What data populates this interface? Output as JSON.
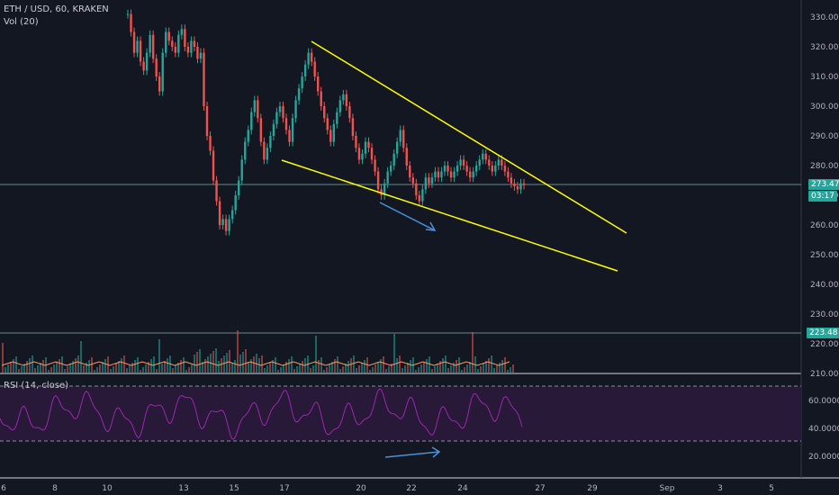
{
  "header": {
    "symbol": "ETH / USD, 60, KRAKEN",
    "volume_label": "Vol (20)",
    "rsi_label": "RSI (14, close)"
  },
  "colors": {
    "background": "#131722",
    "up": "#26a69a",
    "down": "#ef5350",
    "trendline": "#ffff00",
    "arrow": "#4a90d9",
    "rsi": "#9c27b0",
    "badge_price": "#26a69a",
    "badge_volume": "#26a69a"
  },
  "price_axis": {
    "ticks": [
      "330.00",
      "320.00",
      "310.00",
      "300.00",
      "290.00",
      "280.00",
      "270.00",
      "260.00",
      "250.00",
      "240.00",
      "230.00",
      "220.00",
      "210.00"
    ],
    "last_price": "273.47",
    "countdown": "03:17",
    "volume_marker": "223.48"
  },
  "rsi_axis": {
    "ticks": [
      "60.0000",
      "40.0000",
      "20.0000"
    ]
  },
  "time_axis": {
    "labels": [
      "6",
      "8",
      "10",
      "13",
      "15",
      "17",
      "20",
      "22",
      "24",
      "27",
      "29",
      "Sep",
      "3",
      "5"
    ]
  },
  "chart_data": {
    "type": "candlestick",
    "title": "ETH / USD, 60, KRAKEN",
    "ylim": [
      205,
      335
    ],
    "closes": [
      331,
      325,
      318,
      322,
      315,
      312,
      318,
      324,
      316,
      310,
      305,
      318,
      325,
      322,
      320,
      318,
      324,
      326,
      320,
      318,
      322,
      320,
      316,
      318,
      300,
      290,
      285,
      275,
      268,
      260,
      262,
      258,
      262,
      265,
      270,
      275,
      282,
      288,
      292,
      298,
      302,
      296,
      288,
      282,
      286,
      290,
      294,
      298,
      300,
      296,
      292,
      288,
      296,
      302,
      306,
      310,
      314,
      318,
      315,
      310,
      305,
      300,
      296,
      292,
      288,
      294,
      298,
      302,
      304,
      300,
      296,
      290,
      286,
      282,
      284,
      288,
      286,
      282,
      278,
      272,
      270,
      274,
      278,
      280,
      284,
      288,
      292,
      286,
      280,
      276,
      274,
      270,
      268,
      272,
      276,
      274,
      276,
      278,
      276,
      278,
      280,
      278,
      276,
      278,
      280,
      282,
      280,
      278,
      276,
      278,
      280,
      282,
      284,
      282,
      280,
      278,
      280,
      282,
      280,
      278,
      276,
      274,
      273,
      272,
      274,
      273.47
    ],
    "trendlines": [
      {
        "from": [
          "Aug 17",
          321
        ],
        "to": [
          "Aug 30",
          257
        ]
      },
      {
        "from": [
          "Aug 17",
          282
        ],
        "to": [
          "Aug 30",
          245
        ]
      }
    ],
    "rsi": {
      "upper": 70,
      "lower": 30,
      "ylim": [
        5,
        75
      ]
    }
  }
}
